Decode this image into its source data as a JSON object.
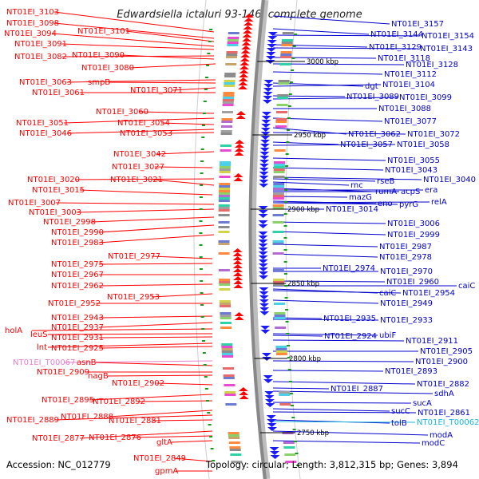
{
  "title": "Edwardsiella ictaluri 93-146, complete genome",
  "footer": {
    "accession": "Accession: NC_012779",
    "summary": "Topology: circular; Length: 3,812,315 bp; Genes: 3,894"
  },
  "colors": {
    "left_label": "#ff0000",
    "right_label": "#0000cc",
    "rna_label": "#e87fc8",
    "rna_right_label": "#17b6dc",
    "backbone": "#888888",
    "forward_arrow": "#ff0000",
    "reverse_arrow": "#1a1aff"
  },
  "kbp_marks": [
    {
      "label": "3000 kbp"
    },
    {
      "label": "2950 kbp"
    },
    {
      "label": "2900 kbp"
    },
    {
      "label": "2850 kbp"
    },
    {
      "label": "2800 kbp"
    },
    {
      "label": "2750 kbp"
    }
  ],
  "left_labels": [
    "NT01EI_3103",
    "NT01EI_3098",
    "NT01EI_3101",
    "NT01EI_3094",
    "NT01EI_3091",
    "NT01EI_3082",
    "NT01EI_3090",
    "NT01EI_3080",
    "NT01EI_3063",
    "smpB",
    "NT01EI_3071",
    "NT01EI_3061",
    "NT01EI_3060",
    "NT01EI_3051",
    "NT01EI_3054",
    "NT01EI_3046",
    "NT01EI_3053",
    "NT01EI_3042",
    "NT01EI_3027",
    "NT01EI_3020",
    "NT01EI_3021",
    "NT01EI_3015",
    "NT01EI_3007",
    "NT01EI_3003",
    "NT01EI_2998",
    "NT01EI_2990",
    "NT01EI_2983",
    "NT01EI_2977",
    "NT01EI_2975",
    "NT01EI_2967",
    "NT01EI_2962",
    "NT01EI_2953",
    "NT01EI_2952",
    "NT01EI_2943",
    "holA",
    "NT01EI_2937",
    "leuS",
    "NT01EI_2931",
    "lnt",
    "NT01EI_2925",
    "NT01EI_T00067",
    "asnB",
    "NT01EI_2909",
    "nagB",
    "NT01EI_2902",
    "NT01EI_2895",
    "NT01EI_2892",
    "NT01EI_2889",
    "NT01EI_2888",
    "NT01EI_2881",
    "NT01EI_2877",
    "NT01EI_2876",
    "gltA",
    "NT01EI_2849",
    "gpmA"
  ],
  "right_labels": [
    "NT01EI_3157",
    "NT01EI_3144",
    "NT01EI_3154",
    "NT01EI_3129",
    "NT01EI_3143",
    "NT01EI_3118",
    "NT01EI_3128",
    "NT01EI_3112",
    "dgt",
    "NT01EI_3104",
    "NT01EI_3089",
    "NT01EI_3099",
    "NT01EI_3088",
    "NT01EI_3077",
    "NT01EI_3062",
    "NT01EI_3072",
    "NT01EI_3057",
    "NT01EI_3058",
    "NT01EI_3055",
    "NT01EI_3043",
    "rnc",
    "rseB",
    "NT01EI_3040",
    "rumA",
    "acpS",
    "era",
    "mazG",
    "eno",
    "pyrG",
    "relA",
    "NT01EI_3014",
    "NT01EI_3006",
    "NT01EI_2999",
    "NT01EI_2987",
    "NT01EI_2978",
    "NT01EI_2974",
    "NT01EI_2970",
    "NT01EI_2960",
    "caiC",
    "caiC",
    "NT01EI_2954",
    "NT01EI_2949",
    "NT01EI_2935",
    "NT01EI_2933",
    "NT01EI_2924",
    "ubiF",
    "NT01EI_2911",
    "NT01EI_2905",
    "NT01EI_2900",
    "NT01EI_2893",
    "NT01EI_2882",
    "NT01EI_2887",
    "sdhA",
    "sucA",
    "sucC",
    "NT01EI_2861",
    "tolB",
    "NT01EI_T00062",
    "modA",
    "modC"
  ]
}
